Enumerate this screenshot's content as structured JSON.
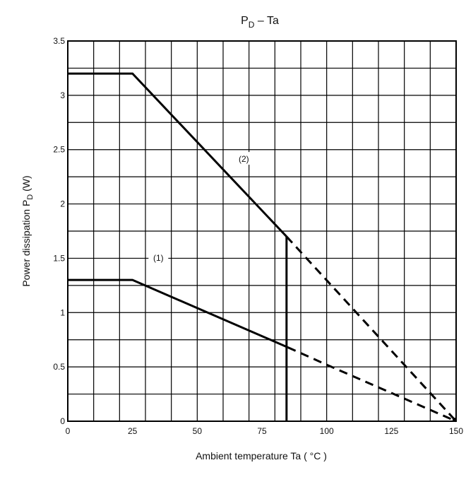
{
  "chart_data": {
    "type": "line",
    "title": "P",
    "title_sub": "D",
    "title_rest": " – Ta",
    "xlabel": "Ambient temperature Ta ( °C )",
    "ylabel": "Power dissipation P",
    "ylabel_sub": "D",
    "ylabel_rest": " (W)",
    "xlim": [
      0,
      150
    ],
    "ylim": [
      0,
      3.5
    ],
    "x_ticks": [
      0,
      25,
      50,
      75,
      100,
      125,
      150
    ],
    "x_tick_labels": [
      "0",
      "25",
      "50",
      "75",
      "100",
      "125",
      "150"
    ],
    "y_ticks": [
      0,
      0.5,
      1,
      1.5,
      2,
      2.5,
      3,
      3.5
    ],
    "y_tick_labels": [
      "0",
      "0.5",
      "1",
      "1.5",
      "2",
      "2.5",
      "3",
      "3.5"
    ],
    "grid": true,
    "series": [
      {
        "name": "(1)",
        "label_at": [
          35,
          1.49
        ],
        "solid": {
          "x": [
            0,
            25,
            85
          ],
          "y": [
            1.3,
            1.3,
            0.68
          ]
        },
        "dashed": {
          "x": [
            85,
            100,
            150
          ],
          "y": [
            0.68,
            0.52,
            0
          ]
        }
      },
      {
        "name": "(2)",
        "label_at": [
          68,
          2.4
        ],
        "solid": {
          "x": [
            0,
            25,
            84.5
          ],
          "y": [
            3.2,
            3.2,
            1.7
          ]
        },
        "dashed": {
          "x": [
            84.5,
            150
          ],
          "y": [
            1.7,
            0
          ]
        }
      }
    ],
    "vertical_line": {
      "x": 84.5,
      "y": [
        0,
        1.7
      ]
    }
  }
}
